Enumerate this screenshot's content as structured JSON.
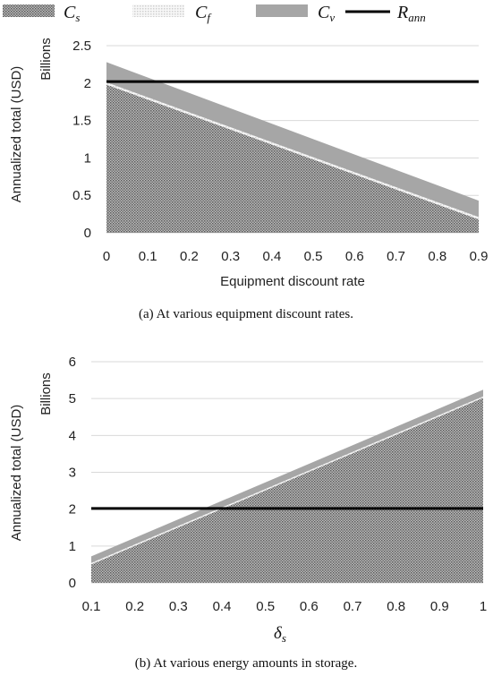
{
  "legend": [
    {
      "sym": "C",
      "sub": "s",
      "style": "stipple-dark"
    },
    {
      "sym": "C",
      "sub": "f",
      "style": "stipple-light"
    },
    {
      "sym": "C",
      "sub": "v",
      "style": "solid-gray"
    },
    {
      "sym": "R",
      "sub": "ann",
      "style": "black-line"
    }
  ],
  "colors": {
    "cs_fill": "#8c8c8c",
    "cf_fill": "#ebebeb",
    "cv_fill": "#a6a6a6",
    "rann_line": "#000000",
    "grid": "#d9d9d9"
  },
  "chart_data": [
    {
      "type": "area",
      "stacked": true,
      "caption": "(a)  At various equipment discount rates.",
      "xlabel": "Equipment discount rate",
      "ylabel": "Annualized total (USD)",
      "yunit": "Billions",
      "x": [
        0,
        0.9
      ],
      "xticks": [
        "0",
        "0.1",
        "0.2",
        "0.3",
        "0.4",
        "0.5",
        "0.6",
        "0.7",
        "0.8",
        "0.9"
      ],
      "yticks": [
        "0",
        "0.5",
        "1",
        "1.5",
        "2",
        "2.5"
      ],
      "xlim": [
        0,
        0.9
      ],
      "ylim": [
        0,
        2.5
      ],
      "series": [
        {
          "name": "C_s",
          "values": [
            1.98,
            0.18
          ]
        },
        {
          "name": "C_f",
          "values": [
            0.03,
            0.03
          ]
        },
        {
          "name": "C_v",
          "values": [
            0.27,
            0.22
          ]
        }
      ],
      "reference": {
        "name": "R_ann",
        "value": 2.02
      },
      "grid": true
    },
    {
      "type": "area",
      "stacked": true,
      "caption": "(b)  At various energy amounts in storage.",
      "xlabel": "δs",
      "ylabel": "Annualized total (USD)",
      "yunit": "Billions",
      "x": [
        0.1,
        1
      ],
      "xticks": [
        "0.1",
        "0.2",
        "0.3",
        "0.4",
        "0.5",
        "0.6",
        "0.7",
        "0.8",
        "0.9",
        "1"
      ],
      "yticks": [
        "0",
        "1",
        "2",
        "3",
        "4",
        "5",
        "6"
      ],
      "xlim": [
        0.1,
        1
      ],
      "ylim": [
        0,
        6
      ],
      "series": [
        {
          "name": "C_s",
          "values": [
            0.5,
            5.02
          ]
        },
        {
          "name": "C_f",
          "values": [
            0.04,
            0.04
          ]
        },
        {
          "name": "C_v",
          "values": [
            0.18,
            0.18
          ]
        }
      ],
      "reference": {
        "name": "R_ann",
        "value": 2.02
      },
      "grid": true
    }
  ]
}
